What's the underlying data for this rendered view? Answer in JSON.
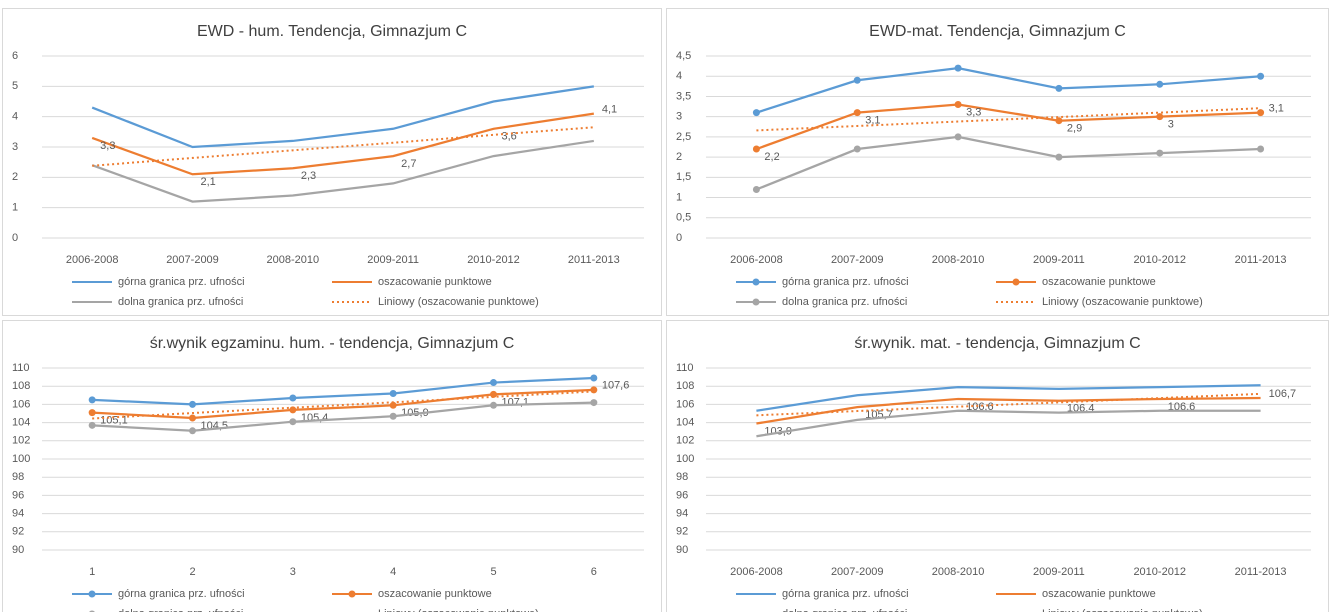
{
  "chart_data": [
    {
      "type": "line",
      "title": "EWD - hum. Tendencja, Gimnazjum C",
      "markers": false,
      "categories": [
        "2006-2008",
        "2007-2009",
        "2008-2010",
        "2009-2011",
        "2010-2012",
        "2011-2013"
      ],
      "ylim": [
        0,
        6
      ],
      "yticks": [
        0,
        1,
        2,
        3,
        4,
        5,
        6
      ],
      "grid": true,
      "series": [
        {
          "name": "górna granica prz. ufności",
          "color": "#5b9bd5",
          "values": [
            4.3,
            3.0,
            3.2,
            3.6,
            4.5,
            5.0
          ]
        },
        {
          "name": "oszacowanie punktowe",
          "color": "#ed7d31",
          "values": [
            3.3,
            2.1,
            2.3,
            2.7,
            3.6,
            4.1
          ],
          "value_labels": [
            "3,3",
            "2,1",
            "2,3",
            "2,7",
            "3,6",
            "4,1"
          ]
        },
        {
          "name": "dolna granica prz. ufności",
          "color": "#a5a5a5",
          "values": [
            2.4,
            1.2,
            1.4,
            1.8,
            2.7,
            3.2
          ]
        },
        {
          "name": "Liniowy (oszacowanie punktowe)",
          "color": "#ed7d31",
          "style": "dotted",
          "values": [
            2.38,
            2.64,
            2.89,
            3.14,
            3.4,
            3.65
          ]
        }
      ]
    },
    {
      "type": "line",
      "title": "EWD-mat. Tendencja, Gimnazjum C",
      "markers": true,
      "categories": [
        "2006-2008",
        "2007-2009",
        "2008-2010",
        "2009-2011",
        "2010-2012",
        "2011-2013"
      ],
      "ylim": [
        0,
        4.5
      ],
      "yticks": [
        0,
        {
          "value": 0.5,
          "label": "0,5"
        },
        1,
        {
          "value": 1.5,
          "label": "1,5"
        },
        2,
        {
          "value": 2.5,
          "label": "2,5"
        },
        3,
        {
          "value": 3.5,
          "label": "3,5"
        },
        4,
        {
          "value": 4.5,
          "label": "4,5"
        }
      ],
      "grid": true,
      "series": [
        {
          "name": "górna granica prz. ufności",
          "color": "#5b9bd5",
          "values": [
            3.1,
            3.9,
            4.2,
            3.7,
            3.8,
            4.0
          ]
        },
        {
          "name": "oszacowanie punktowe",
          "color": "#ed7d31",
          "values": [
            2.2,
            3.1,
            3.3,
            2.9,
            3.0,
            3.1
          ],
          "value_labels": [
            "2,2",
            "3,1",
            "3,3",
            "2,9",
            "3",
            "3,1"
          ]
        },
        {
          "name": "dolna granica prz. ufności",
          "color": "#a5a5a5",
          "values": [
            1.2,
            2.2,
            2.5,
            2.0,
            2.1,
            2.2
          ]
        },
        {
          "name": "Liniowy (oszacowanie punktowe)",
          "color": "#ed7d31",
          "style": "dotted",
          "values": [
            2.66,
            2.77,
            2.88,
            2.99,
            3.1,
            3.21
          ]
        }
      ]
    },
    {
      "type": "line",
      "title": "śr.wynik egzaminu. hum. - tendencja, Gimnazjum C",
      "markers": true,
      "categories": [
        "1",
        "2",
        "3",
        "4",
        "5",
        "6"
      ],
      "ylim": [
        90,
        110
      ],
      "yticks": [
        90,
        92,
        94,
        96,
        98,
        100,
        102,
        104,
        106,
        108,
        110
      ],
      "grid": true,
      "series": [
        {
          "name": "górna granica prz. ufności",
          "color": "#5b9bd5",
          "values": [
            106.5,
            106.0,
            106.7,
            107.2,
            108.4,
            108.9
          ]
        },
        {
          "name": "oszacowanie punktowe",
          "color": "#ed7d31",
          "values": [
            105.1,
            104.5,
            105.4,
            105.9,
            107.1,
            107.6
          ],
          "value_labels": [
            "105,1",
            "104,5",
            "105,4",
            "105,9",
            "107,1",
            "107,6"
          ]
        },
        {
          "name": "dolna granica prz. ufności",
          "color": "#a5a5a5",
          "values": [
            103.7,
            103.1,
            104.1,
            104.7,
            105.9,
            106.2
          ]
        },
        {
          "name": "Liniowy (oszacowanie punktowe)",
          "color": "#ed7d31",
          "style": "dotted",
          "values": [
            104.45,
            105.05,
            105.64,
            106.23,
            106.83,
            107.42
          ]
        }
      ]
    },
    {
      "type": "line",
      "title": "śr.wynik. mat. - tendencja, Gimnazjum C",
      "markers": false,
      "categories": [
        "2006-2008",
        "2007-2009",
        "2008-2010",
        "2009-2011",
        "2010-2012",
        "2011-2013"
      ],
      "ylim": [
        90,
        110
      ],
      "yticks": [
        90,
        92,
        94,
        96,
        98,
        100,
        102,
        104,
        106,
        108,
        110
      ],
      "grid": true,
      "series": [
        {
          "name": "górna granica prz. ufności",
          "color": "#5b9bd5",
          "values": [
            105.3,
            107.0,
            107.9,
            107.7,
            107.9,
            108.1
          ]
        },
        {
          "name": "oszacowanie punktowe",
          "color": "#ed7d31",
          "values": [
            103.9,
            105.7,
            106.6,
            106.4,
            106.6,
            106.7
          ],
          "value_labels": [
            "103,9",
            "105,7",
            "106,6",
            "106,4",
            "106,6",
            "106,7"
          ]
        },
        {
          "name": "dolna granica prz. ufności",
          "color": "#a5a5a5",
          "values": [
            102.5,
            104.3,
            105.3,
            105.1,
            105.3,
            105.3
          ]
        },
        {
          "name": "Liniowy (oszacowanie punktowe)",
          "color": "#ed7d31",
          "style": "dotted",
          "values": [
            104.8,
            105.27,
            105.75,
            106.22,
            106.69,
            107.16
          ]
        }
      ]
    }
  ]
}
